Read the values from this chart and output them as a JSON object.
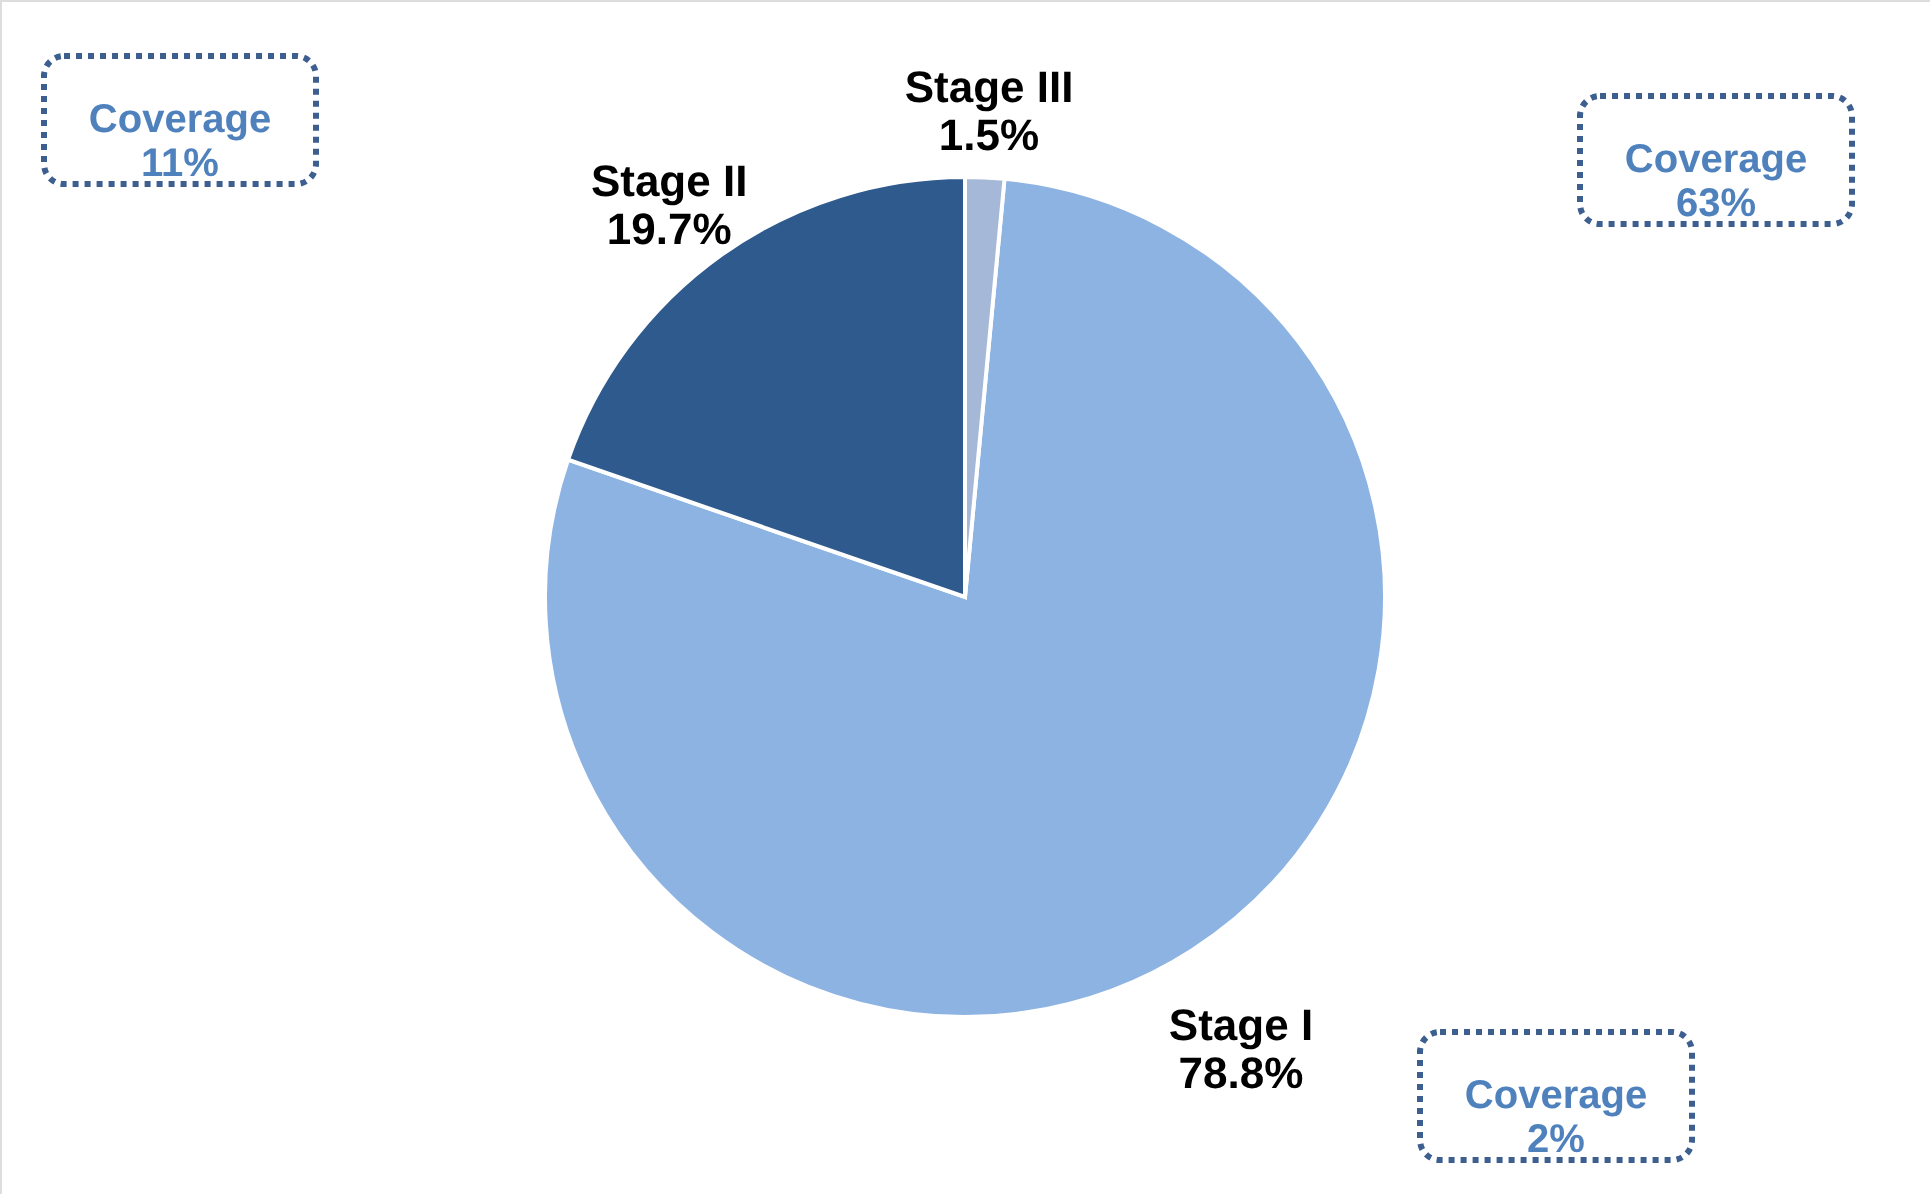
{
  "chart_data": {
    "type": "pie",
    "categories": [
      "Stage I",
      "Stage II",
      "Stage III"
    ],
    "values": [
      78.8,
      19.7,
      1.5
    ],
    "colors": [
      "#8db3e2",
      "#2f5a8e",
      "#a6b8d8"
    ],
    "value_labels": [
      "78.8%",
      "19.7%",
      "1.5%"
    ],
    "annotations": [
      "Coverage\n11%",
      "Coverage\n63%",
      "Coverage\n2%"
    ]
  }
}
